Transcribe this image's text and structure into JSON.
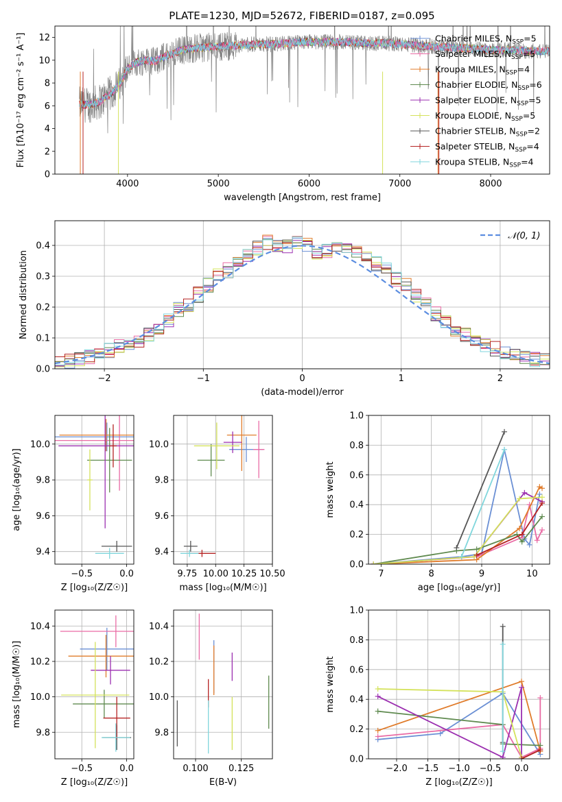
{
  "figure": {
    "title": "PLATE=1230, MJD=52672, FIBERID=0187, z=0.095"
  },
  "colors": {
    "chabrier_miles": "#6a8fd4",
    "salpeter_miles": "#e96aa4",
    "kroupa_miles": "#e07b2a",
    "chabrier_elodie": "#5f8a4f",
    "salpeter_elodie": "#9b2fb0",
    "kroupa_elodie": "#d4e25a",
    "chabrier_stelib": "#555555",
    "salpeter_stelib": "#b52222",
    "kroupa_stelib": "#7fd6dc",
    "data_gray": "#808080",
    "gaussian": "#5b8de0"
  },
  "chart_data": [
    {
      "id": "spectrum",
      "type": "line",
      "xlabel": "wavelength [Angstrom, rest frame]",
      "ylabel": "Flux [fλ10⁻¹⁷ erg cm⁻² s⁻¹ A⁻¹]",
      "xlim": [
        3200,
        8650
      ],
      "ylim": [
        0,
        13
      ],
      "xticks": [
        4000,
        5000,
        6000,
        7000,
        8000
      ],
      "yticks": [
        0,
        2,
        4,
        6,
        8,
        10,
        12
      ],
      "grid": false,
      "legend_position": "right",
      "legend": [
        {
          "label": "Chabrier MILES, N",
          "sub": "SSP",
          "value": "=5",
          "marker": "+",
          "color_key": "chabrier_miles"
        },
        {
          "label": "Salpeter MILES, N",
          "sub": "SSP",
          "value": "=5",
          "marker": "+",
          "color_key": "salpeter_miles"
        },
        {
          "label": "Kroupa MILES, N",
          "sub": "SSP",
          "value": "=4",
          "marker": "+",
          "color_key": "kroupa_miles"
        },
        {
          "label": "Chabrier ELODIE, N",
          "sub": "SSP",
          "value": "=6",
          "marker": "+",
          "color_key": "chabrier_elodie"
        },
        {
          "label": "Salpeter ELODIE, N",
          "sub": "SSP",
          "value": "=5",
          "marker": "+",
          "color_key": "salpeter_elodie"
        },
        {
          "label": "Kroupa ELODIE, N",
          "sub": "SSP",
          "value": "=5",
          "marker": "+",
          "color_key": "kroupa_elodie"
        },
        {
          "label": "Chabrier STELIB, N",
          "sub": "SSP",
          "value": "=2",
          "marker": "+",
          "color_key": "chabrier_stelib"
        },
        {
          "label": "Salpeter STELIB, N",
          "sub": "SSP",
          "value": "=4",
          "marker": "+",
          "color_key": "salpeter_stelib"
        },
        {
          "label": "Kroupa STELIB, N",
          "sub": "SSP",
          "value": "=4",
          "marker": "+",
          "color_key": "kroupa_stelib"
        }
      ],
      "model_curve": {
        "wavelength": [
          3470,
          3600,
          3700,
          3800,
          3900,
          4000,
          4100,
          4200,
          4300,
          4400,
          4600,
          4800,
          5000,
          5200,
          5400,
          5600,
          5800,
          6000,
          6200,
          6400,
          6600,
          6800,
          7000,
          7200,
          7400,
          7600,
          7800,
          8000,
          8200,
          8400,
          8650
        ],
        "flux": [
          6.1,
          6.1,
          6.4,
          7.0,
          7.7,
          9.3,
          9.8,
          10.0,
          9.9,
          10.3,
          10.9,
          11.1,
          11.2,
          11.3,
          11.4,
          11.4,
          11.5,
          11.6,
          11.6,
          11.6,
          11.5,
          11.5,
          11.4,
          11.3,
          11.2,
          11.1,
          11.0,
          10.9,
          10.9,
          10.8,
          10.8
        ]
      }
    },
    {
      "id": "residuals",
      "type": "histogram",
      "xlabel": "(data-model)/error",
      "ylabel": "Normed distribution",
      "xlim": [
        -2.5,
        2.5
      ],
      "ylim": [
        0,
        0.48
      ],
      "xticks": [
        -2,
        -1,
        0,
        1,
        2
      ],
      "yticks": [
        0.0,
        0.1,
        0.2,
        0.3,
        0.4
      ],
      "grid": true,
      "legend_position": "top-right",
      "legend": [
        {
          "label": "𝒩(0, 1)",
          "style": "dashed",
          "color_key": "gaussian"
        }
      ],
      "bin_width": 0.1,
      "bin_start": -2.5,
      "mean_density": [
        0.02,
        0.025,
        0.03,
        0.04,
        0.05,
        0.06,
        0.07,
        0.08,
        0.09,
        0.11,
        0.13,
        0.16,
        0.19,
        0.21,
        0.24,
        0.27,
        0.3,
        0.32,
        0.35,
        0.37,
        0.39,
        0.41,
        0.4,
        0.4,
        0.41,
        0.4,
        0.38,
        0.38,
        0.39,
        0.39,
        0.38,
        0.37,
        0.34,
        0.32,
        0.29,
        0.27,
        0.24,
        0.21,
        0.18,
        0.15,
        0.13,
        0.11,
        0.09,
        0.08,
        0.065,
        0.05,
        0.04,
        0.035,
        0.03,
        0.025
      ]
    },
    {
      "id": "age_vs_Z",
      "type": "scatter",
      "xlabel": "Z [log₁₀(Z/Z☉)]",
      "ylabel": "age  [log₁₀(age/yr)]",
      "xlim": [
        -0.8,
        0.08
      ],
      "ylim": [
        9.33,
        10.16
      ],
      "xticks": [
        -0.5,
        0.0
      ],
      "yticks": [
        9.4,
        9.6,
        9.8,
        10.0
      ],
      "grid": true,
      "points": [
        {
          "x": -0.22,
          "y": 10.04,
          "xerr": 0.63,
          "yerr": 0.08,
          "color_key": "chabrier_miles"
        },
        {
          "x": -0.08,
          "y": 10.02,
          "xerr": 0.72,
          "yerr": 0.28,
          "color_key": "salpeter_miles"
        },
        {
          "x": -0.23,
          "y": 10.05,
          "xerr": 0.52,
          "yerr": 0.09,
          "color_key": "kroupa_miles"
        },
        {
          "x": -0.19,
          "y": 9.91,
          "xerr": 0.25,
          "yerr": 0.18,
          "color_key": "chabrier_elodie"
        },
        {
          "x": -0.24,
          "y": 9.99,
          "xerr": 0.52,
          "yerr": 0.46,
          "color_key": "salpeter_elodie"
        },
        {
          "x": -0.41,
          "y": 9.8,
          "xerr": 0.03,
          "yerr": 0.17,
          "color_key": "kroupa_elodie"
        },
        {
          "x": -0.11,
          "y": 9.43,
          "xerr": 0.17,
          "yerr": 0.03,
          "color_key": "chabrier_stelib"
        },
        {
          "x": -0.15,
          "y": 9.99,
          "xerr": 0.04,
          "yerr": 0.12,
          "color_key": "salpeter_stelib"
        },
        {
          "x": -0.19,
          "y": 9.39,
          "xerr": 0.16,
          "yerr": 0.03,
          "color_key": "kroupa_stelib"
        }
      ]
    },
    {
      "id": "age_vs_mass",
      "type": "scatter",
      "xlabel": "mass [log₁₀(M/M☉)]",
      "ylabel": "",
      "xlim": [
        9.63,
        10.5
      ],
      "ylim": [
        9.33,
        10.16
      ],
      "xticks": [
        9.75,
        10.0,
        10.25,
        10.5
      ],
      "xticklabels": [
        "9.75",
        "10.00",
        "10.25",
        "10.50"
      ],
      "yticks": [
        9.4,
        9.6,
        9.8,
        10.0
      ],
      "grid": true,
      "points": [
        {
          "x": 10.27,
          "y": 9.97,
          "xerr": 0.15,
          "yerr": 0.07,
          "color_key": "chabrier_miles"
        },
        {
          "x": 10.38,
          "y": 9.97,
          "xerr": 0.05,
          "yerr": 0.16,
          "color_key": "salpeter_miles"
        },
        {
          "x": 10.23,
          "y": 10.05,
          "xerr": 0.13,
          "yerr": 0.2,
          "color_key": "kroupa_miles"
        },
        {
          "x": 9.96,
          "y": 9.91,
          "xerr": 0.12,
          "yerr": 0.09,
          "color_key": "chabrier_elodie"
        },
        {
          "x": 10.15,
          "y": 10.01,
          "xerr": 0.08,
          "yerr": 0.06,
          "color_key": "salpeter_elodie"
        },
        {
          "x": 10.01,
          "y": 9.99,
          "xerr": 0.2,
          "yerr": 0.13,
          "color_key": "kroupa_elodie"
        },
        {
          "x": 9.78,
          "y": 9.43,
          "xerr": 0.06,
          "yerr": 0.03,
          "color_key": "chabrier_stelib"
        },
        {
          "x": 9.88,
          "y": 9.39,
          "xerr": 0.12,
          "yerr": 0.02,
          "color_key": "salpeter_stelib"
        },
        {
          "x": 9.77,
          "y": 9.39,
          "xerr": 0.08,
          "yerr": 0.02,
          "color_key": "kroupa_stelib"
        }
      ]
    },
    {
      "id": "weight_vs_age",
      "type": "line",
      "xlabel": "age  [log₁₀(age/yr)]",
      "ylabel": "mass weight",
      "xlim": [
        6.75,
        10.35
      ],
      "ylim": [
        0,
        1
      ],
      "xticks": [
        7,
        8,
        9,
        10
      ],
      "yticks": [
        0.0,
        0.2,
        0.4,
        0.6,
        0.8,
        1.0
      ],
      "grid": true,
      "series": [
        {
          "color_key": "chabrier_miles",
          "x": [
            6.85,
            8.6,
            9.0,
            9.45,
            9.85,
            9.95,
            10.15
          ],
          "y": [
            0.0,
            0.05,
            0.07,
            0.77,
            0.17,
            0.13,
            0.47
          ]
        },
        {
          "color_key": "salpeter_miles",
          "x": [
            6.85,
            8.9,
            9.8,
            9.95,
            10.1,
            10.2
          ],
          "y": [
            0.0,
            0.05,
            0.18,
            0.4,
            0.16,
            0.23
          ]
        },
        {
          "color_key": "kroupa_miles",
          "x": [
            6.85,
            8.9,
            9.75,
            10.15,
            10.2
          ],
          "y": [
            0.0,
            0.03,
            0.24,
            0.52,
            0.51
          ]
        },
        {
          "color_key": "chabrier_elodie",
          "x": [
            6.85,
            8.5,
            8.9,
            9.7,
            9.8,
            10.2
          ],
          "y": [
            0.0,
            0.09,
            0.1,
            0.2,
            0.15,
            0.32
          ]
        },
        {
          "color_key": "salpeter_elodie",
          "x": [
            6.85,
            8.85,
            9.85,
            10.2
          ],
          "y": [
            0.0,
            0.05,
            0.48,
            0.42
          ]
        },
        {
          "color_key": "kroupa_elodie",
          "x": [
            6.85,
            8.85,
            9.75,
            10.2
          ],
          "y": [
            0.0,
            0.05,
            0.44,
            0.45
          ]
        },
        {
          "color_key": "chabrier_stelib",
          "x": [
            8.5,
            9.45
          ],
          "y": [
            0.11,
            0.89
          ]
        },
        {
          "color_key": "salpeter_stelib",
          "x": [
            8.9,
            9.8,
            10.2
          ],
          "y": [
            0.06,
            0.2,
            0.41
          ]
        },
        {
          "color_key": "kroupa_stelib",
          "x": [
            8.6,
            9.45
          ],
          "y": [
            0.05,
            0.77
          ]
        }
      ]
    },
    {
      "id": "mass_vs_Z",
      "type": "scatter",
      "xlabel": "Z [log₁₀(Z/Z☉)]",
      "ylabel": "mass [log₁₀(M/M☉)]",
      "xlim": [
        -0.8,
        0.08
      ],
      "ylim": [
        9.65,
        10.49
      ],
      "xticks": [
        -0.5,
        0.0
      ],
      "yticks": [
        9.8,
        10.0,
        10.2,
        10.4
      ],
      "grid": true,
      "points": [
        {
          "x": -0.22,
          "y": 10.27,
          "xerr": 0.3,
          "yerr": 0.12,
          "color_key": "chabrier_miles"
        },
        {
          "x": -0.12,
          "y": 10.37,
          "xerr": 0.62,
          "yerr": 0.09,
          "color_key": "salpeter_miles"
        },
        {
          "x": -0.23,
          "y": 10.23,
          "xerr": 0.42,
          "yerr": 0.12,
          "color_key": "kroupa_miles"
        },
        {
          "x": -0.25,
          "y": 9.96,
          "xerr": 0.35,
          "yerr": 0.08,
          "color_key": "chabrier_elodie"
        },
        {
          "x": -0.18,
          "y": 10.15,
          "xerr": 0.22,
          "yerr": 0.08,
          "color_key": "salpeter_elodie"
        },
        {
          "x": -0.35,
          "y": 10.01,
          "xerr": 0.38,
          "yerr": 0.3,
          "color_key": "kroupa_elodie"
        },
        {
          "x": -0.11,
          "y": 9.77,
          "xerr": 0.16,
          "yerr": 0.07,
          "color_key": "chabrier_stelib"
        },
        {
          "x": -0.11,
          "y": 9.88,
          "xerr": 0.15,
          "yerr": 0.12,
          "color_key": "salpeter_stelib"
        },
        {
          "x": -0.12,
          "y": 9.77,
          "xerr": 0.16,
          "yerr": 0.08,
          "color_key": "kroupa_stelib"
        }
      ]
    },
    {
      "id": "mass_vs_EBV",
      "type": "scatter",
      "xlabel": "E(B-V)",
      "ylabel": "",
      "xlim": [
        0.088,
        0.142
      ],
      "ylim": [
        9.65,
        10.49
      ],
      "xticks": [
        0.1,
        0.125
      ],
      "xticklabels": [
        "0.100",
        "0.125"
      ],
      "yticks": [
        9.8,
        10.0,
        10.2,
        10.4
      ],
      "grid": true,
      "points": [
        {
          "x": 0.11,
          "y": 10.17,
          "xerr": 0,
          "yerr": 0.15,
          "color_key": "chabrier_miles"
        },
        {
          "x": 0.102,
          "y": 10.34,
          "xerr": 0,
          "yerr": 0.13,
          "color_key": "salpeter_miles"
        },
        {
          "x": 0.11,
          "y": 10.15,
          "xerr": 0,
          "yerr": 0.14,
          "color_key": "kroupa_miles"
        },
        {
          "x": 0.14,
          "y": 9.97,
          "xerr": 0,
          "yerr": 0.15,
          "color_key": "chabrier_elodie"
        },
        {
          "x": 0.12,
          "y": 10.17,
          "xerr": 0,
          "yerr": 0.08,
          "color_key": "salpeter_elodie"
        },
        {
          "x": 0.12,
          "y": 9.85,
          "xerr": 0,
          "yerr": 0.15,
          "color_key": "kroupa_elodie"
        },
        {
          "x": 0.09,
          "y": 9.85,
          "xerr": 0,
          "yerr": 0.13,
          "color_key": "chabrier_stelib"
        },
        {
          "x": 0.107,
          "y": 10.02,
          "xerr": 0,
          "yerr": 0.08,
          "color_key": "salpeter_stelib"
        },
        {
          "x": 0.107,
          "y": 9.83,
          "xerr": 0,
          "yerr": 0.15,
          "color_key": "kroupa_stelib"
        }
      ]
    },
    {
      "id": "weight_vs_Z",
      "type": "line",
      "xlabel": "Z [log₁₀(Z/Z☉)]",
      "ylabel": "mass weight",
      "xlim": [
        -2.45,
        0.45
      ],
      "ylim": [
        0,
        1
      ],
      "xticks": [
        -2.0,
        -1.5,
        -1.0,
        -0.5,
        0.0
      ],
      "xticklabels": [
        "−2.0",
        "−1.5",
        "−1.0",
        "−0.5",
        "0.0"
      ],
      "yticks": [
        0.0,
        0.2,
        0.4,
        0.6,
        0.8,
        1.0
      ],
      "grid": true,
      "series": [
        {
          "color_key": "chabrier_miles",
          "x": [
            -2.3,
            -1.3,
            -0.3,
            0.3
          ],
          "y": [
            0.13,
            0.17,
            0.44,
            0.03
          ]
        },
        {
          "color_key": "salpeter_miles",
          "x": [
            -2.3,
            -0.3,
            0.0,
            0.3,
            0.3
          ],
          "y": [
            0.15,
            0.23,
            0.01,
            0.07,
            0.41
          ]
        },
        {
          "color_key": "kroupa_miles",
          "x": [
            -2.3,
            0.0,
            0.3
          ],
          "y": [
            0.19,
            0.52,
            0.05
          ]
        },
        {
          "color_key": "chabrier_elodie",
          "x": [
            -2.3,
            -0.3,
            -0.3,
            0.3
          ],
          "y": [
            0.32,
            0.23,
            0.1,
            0.09
          ]
        },
        {
          "color_key": "salpeter_elodie",
          "x": [
            -2.3,
            -0.3,
            0.0,
            0.0
          ],
          "y": [
            0.42,
            0.01,
            0.48,
            0.01
          ]
        },
        {
          "color_key": "kroupa_elodie",
          "x": [
            -2.3,
            -0.3,
            0.0
          ],
          "y": [
            0.47,
            0.45,
            0.01
          ]
        },
        {
          "color_key": "chabrier_stelib",
          "x": [
            -0.3,
            -0.3
          ],
          "y": [
            0.11,
            0.89
          ]
        },
        {
          "color_key": "salpeter_stelib",
          "x": [
            0.0,
            0.3
          ],
          "y": [
            0.0,
            0.06
          ]
        },
        {
          "color_key": "kroupa_stelib",
          "x": [
            -0.3,
            -0.3
          ],
          "y": [
            0.05,
            0.77
          ]
        }
      ]
    }
  ]
}
